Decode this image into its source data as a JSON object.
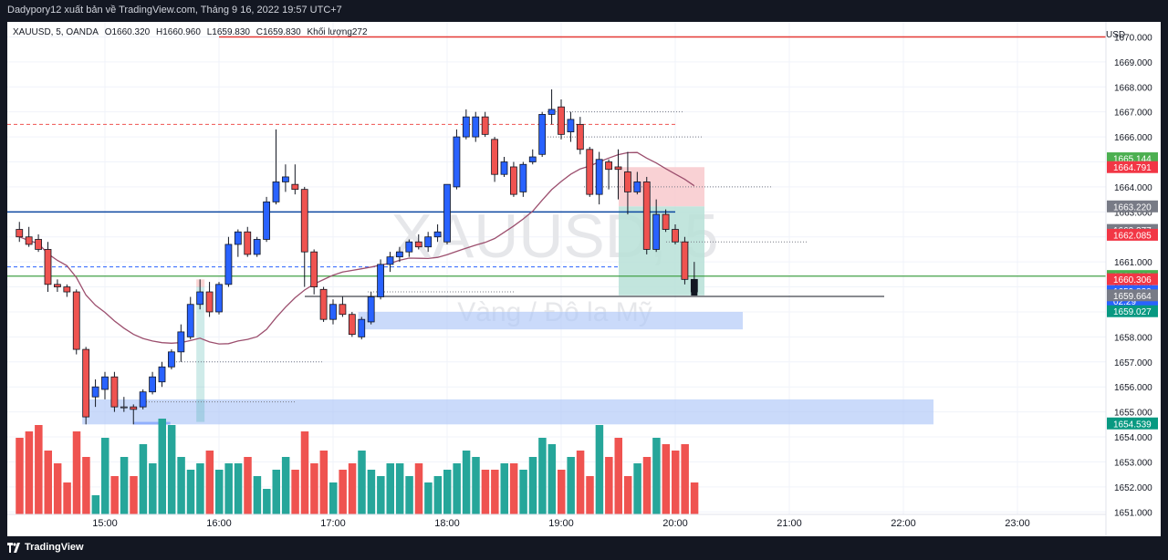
{
  "header": {
    "publisher_text": "Dadypory12 xuất bản về TradingView.com, Tháng 9 16, 2022 19:57 UTC+7"
  },
  "legend": {
    "symbol": "XAUUSD, 5, OANDA",
    "open": "O1660.320",
    "high": "H1660.960",
    "low": "L1659.830",
    "close": "C1659.830",
    "volume": "Khối lượng272"
  },
  "watermark": {
    "symbol": "XAUUSD, 5",
    "description": "Vàng / Đô la Mỹ"
  },
  "footer": {
    "brand": "TradingView"
  },
  "colors": {
    "up": "#2962ff",
    "down": "#ef5350",
    "doji": "#ffffff",
    "vol_up": "#26a69a",
    "vol_down": "#ef5350",
    "ma": "#9c4f6e",
    "resistance": "#e53935",
    "blue_line": "#0d47a1",
    "green_line": "#43a047"
  },
  "chart_data": {
    "type": "candlestick",
    "currency_label": "USD",
    "y_ticks": [
      "1651.000",
      "1652.000",
      "1653.000",
      "1654.000",
      "1655.000",
      "1656.000",
      "1657.000",
      "1658.000",
      "1659.000",
      "1660.000",
      "1661.000",
      "1662.000",
      "1663.000",
      "1664.000",
      "1665.000",
      "1666.000",
      "1667.000",
      "1668.000",
      "1669.000",
      "1670.000"
    ],
    "ylim": [
      1650.9,
      1670.6
    ],
    "x_ticks": [
      "15:00",
      "16:00",
      "17:00",
      "18:00",
      "19:00",
      "20:00",
      "21:00",
      "22:00",
      "23:00"
    ],
    "candles": [
      {
        "t": "14:15",
        "o": 1662.3,
        "h": 1662.6,
        "l": 1661.8,
        "c": 1662.0
      },
      {
        "t": "14:20",
        "o": 1662.0,
        "h": 1662.4,
        "l": 1661.6,
        "c": 1661.7
      },
      {
        "t": "14:25",
        "o": 1661.9,
        "h": 1662.1,
        "l": 1661.4,
        "c": 1661.5
      },
      {
        "t": "14:30",
        "o": 1661.5,
        "h": 1661.8,
        "l": 1659.8,
        "c": 1660.1
      },
      {
        "t": "14:35",
        "o": 1660.1,
        "h": 1660.3,
        "l": 1659.8,
        "c": 1660.0
      },
      {
        "t": "14:40",
        "o": 1660.0,
        "h": 1660.1,
        "l": 1659.6,
        "c": 1659.8
      },
      {
        "t": "14:45",
        "o": 1659.8,
        "h": 1659.9,
        "l": 1657.3,
        "c": 1657.5
      },
      {
        "t": "14:50",
        "o": 1657.5,
        "h": 1657.6,
        "l": 1654.5,
        "c": 1654.8
      },
      {
        "t": "14:55",
        "o": 1655.6,
        "h": 1656.3,
        "l": 1655.2,
        "c": 1656.0
      },
      {
        "t": "15:00",
        "o": 1655.9,
        "h": 1656.6,
        "l": 1655.5,
        "c": 1656.4
      },
      {
        "t": "15:05",
        "o": 1656.4,
        "h": 1656.6,
        "l": 1655.0,
        "c": 1655.2
      },
      {
        "t": "15:10",
        "o": 1655.2,
        "h": 1655.6,
        "l": 1655.0,
        "c": 1655.2
      },
      {
        "t": "15:15",
        "o": 1655.2,
        "h": 1655.3,
        "l": 1654.5,
        "c": 1655.1
      },
      {
        "t": "15:20",
        "o": 1655.2,
        "h": 1655.9,
        "l": 1655.1,
        "c": 1655.8
      },
      {
        "t": "15:25",
        "o": 1655.8,
        "h": 1656.6,
        "l": 1655.7,
        "c": 1656.4
      },
      {
        "t": "15:30",
        "o": 1656.2,
        "h": 1657.0,
        "l": 1656.0,
        "c": 1656.8
      },
      {
        "t": "15:35",
        "o": 1656.8,
        "h": 1657.5,
        "l": 1656.7,
        "c": 1657.4
      },
      {
        "t": "15:40",
        "o": 1657.4,
        "h": 1658.5,
        "l": 1657.0,
        "c": 1658.2
      },
      {
        "t": "15:45",
        "o": 1658.0,
        "h": 1659.6,
        "l": 1657.9,
        "c": 1659.3
      },
      {
        "t": "15:50",
        "o": 1659.3,
        "h": 1660.3,
        "l": 1659.1,
        "c": 1659.8
      },
      {
        "t": "15:55",
        "o": 1659.8,
        "h": 1660.2,
        "l": 1658.8,
        "c": 1659.0
      },
      {
        "t": "16:00",
        "o": 1659.0,
        "h": 1660.2,
        "l": 1658.9,
        "c": 1660.1
      },
      {
        "t": "16:05",
        "o": 1660.1,
        "h": 1662.0,
        "l": 1660.0,
        "c": 1661.7
      },
      {
        "t": "16:10",
        "o": 1661.7,
        "h": 1662.3,
        "l": 1661.2,
        "c": 1662.2
      },
      {
        "t": "16:15",
        "o": 1662.2,
        "h": 1662.4,
        "l": 1661.2,
        "c": 1661.3
      },
      {
        "t": "16:20",
        "o": 1661.3,
        "h": 1662.0,
        "l": 1661.2,
        "c": 1661.9
      },
      {
        "t": "16:25",
        "o": 1661.9,
        "h": 1663.6,
        "l": 1661.8,
        "c": 1663.4
      },
      {
        "t": "16:30",
        "o": 1663.4,
        "h": 1666.3,
        "l": 1663.3,
        "c": 1664.2
      },
      {
        "t": "16:35",
        "o": 1664.2,
        "h": 1664.9,
        "l": 1663.8,
        "c": 1664.4
      },
      {
        "t": "16:40",
        "o": 1664.1,
        "h": 1664.9,
        "l": 1663.7,
        "c": 1663.9
      },
      {
        "t": "16:45",
        "o": 1663.9,
        "h": 1664.0,
        "l": 1660.0,
        "c": 1661.4
      },
      {
        "t": "16:50",
        "o": 1661.4,
        "h": 1661.5,
        "l": 1659.7,
        "c": 1660.0
      },
      {
        "t": "16:55",
        "o": 1659.9,
        "h": 1660.0,
        "l": 1658.6,
        "c": 1658.7
      },
      {
        "t": "17:00",
        "o": 1658.7,
        "h": 1659.5,
        "l": 1658.5,
        "c": 1659.3
      },
      {
        "t": "17:05",
        "o": 1659.3,
        "h": 1659.6,
        "l": 1658.8,
        "c": 1658.9
      },
      {
        "t": "17:10",
        "o": 1658.9,
        "h": 1659.0,
        "l": 1658.0,
        "c": 1658.1
      },
      {
        "t": "17:15",
        "o": 1658.0,
        "h": 1658.8,
        "l": 1657.9,
        "c": 1658.7
      },
      {
        "t": "17:20",
        "o": 1658.6,
        "h": 1659.8,
        "l": 1658.5,
        "c": 1659.6
      },
      {
        "t": "17:25",
        "o": 1659.6,
        "h": 1661.1,
        "l": 1659.5,
        "c": 1660.9
      },
      {
        "t": "17:30",
        "o": 1660.9,
        "h": 1661.4,
        "l": 1660.6,
        "c": 1661.2
      },
      {
        "t": "17:35",
        "o": 1661.2,
        "h": 1661.6,
        "l": 1661.0,
        "c": 1661.4
      },
      {
        "t": "17:40",
        "o": 1661.4,
        "h": 1661.9,
        "l": 1661.2,
        "c": 1661.8
      },
      {
        "t": "17:45",
        "o": 1661.8,
        "h": 1662.1,
        "l": 1661.5,
        "c": 1661.6
      },
      {
        "t": "17:50",
        "o": 1661.6,
        "h": 1662.2,
        "l": 1661.4,
        "c": 1662.0
      },
      {
        "t": "17:55",
        "o": 1662.0,
        "h": 1662.5,
        "l": 1661.8,
        "c": 1662.2
      },
      {
        "t": "18:00",
        "o": 1661.8,
        "h": 1664.0,
        "l": 1661.7,
        "c": 1664.1
      },
      {
        "t": "18:05",
        "o": 1664.0,
        "h": 1666.3,
        "l": 1663.9,
        "c": 1666.0
      },
      {
        "t": "18:10",
        "o": 1666.0,
        "h": 1667.1,
        "l": 1665.9,
        "c": 1666.8
      },
      {
        "t": "18:15",
        "o": 1666.0,
        "h": 1667.0,
        "l": 1665.8,
        "c": 1666.8
      },
      {
        "t": "18:20",
        "o": 1666.8,
        "h": 1667.0,
        "l": 1666.0,
        "c": 1666.1
      },
      {
        "t": "18:25",
        "o": 1665.9,
        "h": 1666.0,
        "l": 1664.2,
        "c": 1664.5
      },
      {
        "t": "18:30",
        "o": 1664.5,
        "h": 1665.2,
        "l": 1664.4,
        "c": 1665.0
      },
      {
        "t": "18:35",
        "o": 1664.8,
        "h": 1665.0,
        "l": 1663.6,
        "c": 1663.7
      },
      {
        "t": "18:40",
        "o": 1663.8,
        "h": 1665.0,
        "l": 1663.6,
        "c": 1664.9
      },
      {
        "t": "18:45",
        "o": 1665.0,
        "h": 1665.5,
        "l": 1664.9,
        "c": 1665.2
      },
      {
        "t": "18:50",
        "o": 1665.3,
        "h": 1667.0,
        "l": 1665.2,
        "c": 1666.9
      },
      {
        "t": "18:55",
        "o": 1666.9,
        "h": 1667.9,
        "l": 1666.5,
        "c": 1667.1
      },
      {
        "t": "19:00",
        "o": 1667.2,
        "h": 1667.5,
        "l": 1665.9,
        "c": 1666.1
      },
      {
        "t": "19:05",
        "o": 1666.2,
        "h": 1667.0,
        "l": 1665.8,
        "c": 1666.7
      },
      {
        "t": "19:10",
        "o": 1666.5,
        "h": 1666.8,
        "l": 1665.3,
        "c": 1665.5
      },
      {
        "t": "19:15",
        "o": 1665.5,
        "h": 1665.6,
        "l": 1663.6,
        "c": 1663.7
      },
      {
        "t": "19:20",
        "o": 1663.7,
        "h": 1665.4,
        "l": 1663.3,
        "c": 1665.1
      },
      {
        "t": "19:25",
        "o": 1665.0,
        "h": 1665.1,
        "l": 1663.9,
        "c": 1664.7
      },
      {
        "t": "19:30",
        "o": 1664.8,
        "h": 1665.5,
        "l": 1663.5,
        "c": 1664.7
      },
      {
        "t": "19:35",
        "o": 1664.6,
        "h": 1665.4,
        "l": 1662.9,
        "c": 1663.8
      },
      {
        "t": "19:40",
        "o": 1663.8,
        "h": 1664.6,
        "l": 1663.7,
        "c": 1664.2
      },
      {
        "t": "19:45",
        "o": 1664.2,
        "h": 1664.4,
        "l": 1661.3,
        "c": 1661.5
      },
      {
        "t": "19:50",
        "o": 1661.5,
        "h": 1663.5,
        "l": 1661.4,
        "c": 1662.9
      },
      {
        "t": "19:55",
        "o": 1662.9,
        "h": 1663.1,
        "l": 1662.2,
        "c": 1662.3
      },
      {
        "t": "20:00",
        "o": 1662.3,
        "h": 1662.5,
        "l": 1661.7,
        "c": 1661.8
      },
      {
        "t": "20:05",
        "o": 1661.8,
        "h": 1662.0,
        "l": 1660.1,
        "c": 1660.3
      },
      {
        "t": "20:10",
        "o": 1660.3,
        "h": 1661.0,
        "l": 1659.8,
        "c": 1659.8
      }
    ],
    "volume": [
      12,
      13,
      14,
      10,
      8,
      5,
      13,
      9,
      3,
      12,
      6,
      9,
      6,
      11,
      8,
      15,
      14,
      9,
      7,
      8,
      10,
      7,
      8,
      8,
      9,
      6,
      4,
      7,
      9,
      7,
      13,
      8,
      10,
      5,
      7,
      8,
      10,
      7,
      6,
      8,
      8,
      6,
      8,
      5,
      6,
      7,
      8,
      10,
      9,
      7,
      7,
      8,
      8,
      7,
      9,
      12,
      11,
      7,
      9,
      10,
      6,
      14,
      9,
      12,
      6,
      8,
      9,
      12,
      11,
      10,
      11,
      5
    ],
    "volume_ylim": [
      0,
      15
    ],
    "ma_length": 20,
    "levels": {
      "resistance": 1670.0,
      "blue_line": 1663.0,
      "green_line": 1660.43,
      "red_dashed_top": 1666.5,
      "blue_dashed": 1660.8
    },
    "zones": [
      {
        "name": "demand_zone_low",
        "from": 1654.5,
        "to": 1655.5,
        "color": "#aec6f8"
      },
      {
        "name": "demand_zone_mid",
        "from": 1658.3,
        "to": 1659.0,
        "color": "#aec6f8"
      }
    ],
    "position": {
      "entry": 1663.22,
      "stop": 1664.79,
      "target": 1659.66
    },
    "price_labels": [
      {
        "value": 1665.144,
        "text": "1665.144",
        "color": "#4caf50"
      },
      {
        "value": 1664.791,
        "text": "1664.791",
        "color": "#f23645"
      },
      {
        "value": 1663.22,
        "text": "1663.220",
        "color": "#787b86"
      },
      {
        "value": 1662.277,
        "text": "1662.277",
        "color": "#787b86"
      },
      {
        "value": 1662.085,
        "text": "1662.085",
        "color": "#f23645"
      },
      {
        "value": 1660.435,
        "text": "1660.435",
        "color": "#4caf50"
      },
      {
        "value": 1660.306,
        "text": "1660.306",
        "color": "#f23645"
      },
      {
        "value": 1659.83,
        "text": "1659.830",
        "sub": "02:29",
        "color": "#2962ff"
      },
      {
        "value": 1659.664,
        "text": "1659.664",
        "color": "#787b86"
      },
      {
        "value": 1659.027,
        "text": "1659.027",
        "color": "#089981"
      },
      {
        "value": 1654.539,
        "text": "1654.539",
        "color": "#089981"
      }
    ]
  }
}
